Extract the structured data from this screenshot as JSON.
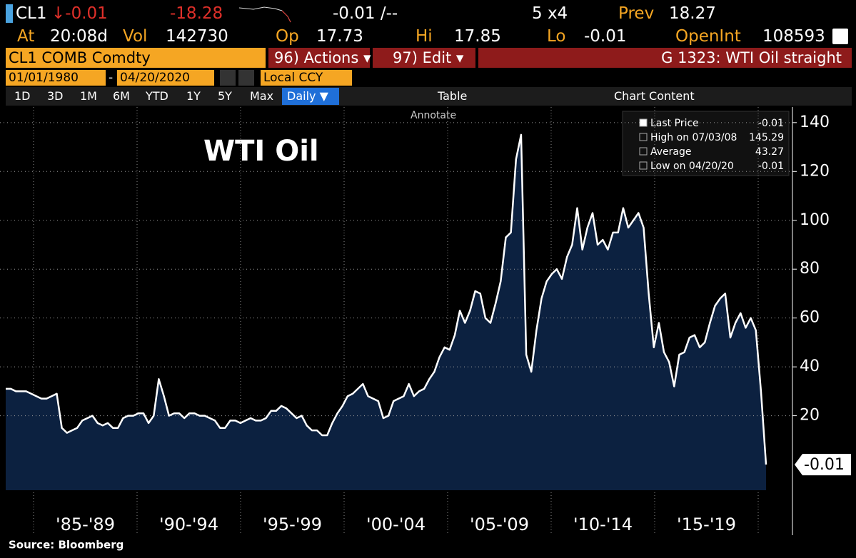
{
  "header": {
    "row1": {
      "ticker": "CL1",
      "change": "↓-0.01",
      "pct_change": "-18.28",
      "bid_ask": "-0.01 /--",
      "size": "5 x4",
      "prev_label": "Prev",
      "prev": "18.27"
    },
    "row2": {
      "at_label": "At",
      "time": "20:08d",
      "vol_label": "Vol",
      "vol": "142730",
      "op_label": "Op",
      "op": "17.73",
      "hi_label": "Hi",
      "hi": "17.85",
      "lo_label": "Lo",
      "lo": "-0.01",
      "oi_label": "OpenInt",
      "oi": "108593"
    },
    "row3": {
      "security": "CL1 COMB Comdty",
      "actions": "96) Actions ▾",
      "edit": "97) Edit ▾",
      "graph": "G 1323: WTI Oil straight"
    },
    "row4": {
      "start": "01/01/1980",
      "dash": "-",
      "end": "04/20/2020",
      "currency": "Local CCY"
    },
    "toolbar": {
      "ranges": [
        "1D",
        "3D",
        "1M",
        "6M",
        "YTD",
        "1Y",
        "5Y",
        "Max"
      ],
      "frequency": "Daily ▼",
      "table": "Table",
      "chart_content": "Chart Content",
      "annotate": "Annotate"
    }
  },
  "legend": {
    "rows": [
      [
        "Last Price",
        "-0.01"
      ],
      [
        "High on 07/03/08",
        "145.29"
      ],
      [
        "Average",
        "43.27"
      ],
      [
        "Low on 04/20/20",
        "-0.01"
      ]
    ]
  },
  "chart_data": {
    "type": "area",
    "title": "WTI Oil",
    "source": "Source: Bloomberg",
    "color": "#ffffff",
    "fill": "#0c2140",
    "x_labels": [
      "'85-'89",
      "'90-'94",
      "'95-'99",
      "'00-'04",
      "'05-'09",
      "'10-'14",
      "'15-'19"
    ],
    "values": [
      31,
      31,
      30,
      30,
      30,
      29,
      28,
      27,
      27,
      28,
      29,
      15,
      13,
      14,
      15,
      18,
      19,
      20,
      17,
      16,
      17,
      15,
      15,
      19,
      20,
      20,
      21,
      21,
      17,
      20,
      35,
      28,
      20,
      21,
      21,
      19,
      21,
      21,
      20,
      20,
      19,
      18,
      15,
      15,
      18,
      18,
      17,
      18,
      19,
      18,
      18,
      19,
      22,
      22,
      24,
      23,
      21,
      19,
      20,
      16,
      14,
      14,
      12,
      12,
      17,
      21,
      24,
      28,
      29,
      31,
      33,
      28,
      27,
      26,
      19,
      20,
      26,
      27,
      28,
      33,
      28,
      30,
      31,
      35,
      38,
      44,
      48,
      47,
      53,
      63,
      58,
      63,
      71,
      70,
      60,
      58,
      66,
      75,
      93,
      95,
      125,
      135,
      45,
      38,
      55,
      68,
      75,
      78,
      80,
      76,
      85,
      90,
      105,
      88,
      97,
      103,
      90,
      92,
      88,
      95,
      95,
      105,
      97,
      100,
      103,
      97,
      70,
      48,
      58,
      46,
      42,
      32,
      45,
      46,
      52,
      53,
      48,
      50,
      58,
      65,
      68,
      70,
      52,
      58,
      62,
      56,
      60,
      55,
      30,
      -0.01
    ],
    "ylim": [
      -10.5,
      145.5
    ],
    "yticks": [
      20,
      40,
      60,
      80,
      100,
      120,
      140
    ],
    "grid": true
  }
}
